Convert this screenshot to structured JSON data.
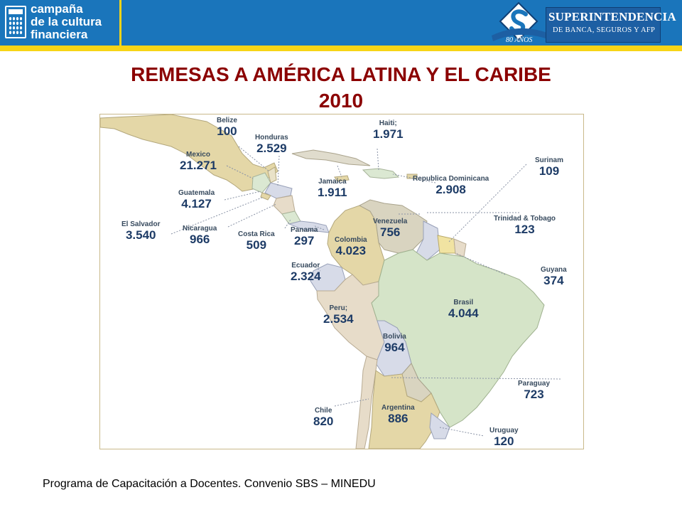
{
  "header": {
    "brand_lines": [
      "campaña",
      "de la cultura",
      "financiera"
    ],
    "org_name_line1": "SUPERINTENDENCIA",
    "org_name_line2": "DE BANCA, SEGUROS Y AFP",
    "anniversary": "80 AÑOS",
    "bar_color": "#1a75bb",
    "stripe_color": "#f7d417"
  },
  "title": {
    "line1": "REMESAS A AMÉRICA LATINA Y EL CARIBE",
    "line2": "2010",
    "color": "#8b0000"
  },
  "map": {
    "countries": [
      {
        "name": "Belize",
        "value": "100"
      },
      {
        "name": "Honduras",
        "value": "2.529"
      },
      {
        "name": "Haiti;",
        "value": "1.971"
      },
      {
        "name": "Mexico",
        "value": "21.271"
      },
      {
        "name": "Surinam",
        "value": "109"
      },
      {
        "name": "Jamaica",
        "value": "1.911"
      },
      {
        "name": "Republica Dominicana",
        "value": "2.908"
      },
      {
        "name": "Guatemala",
        "value": "4.127"
      },
      {
        "name": "El Salvador",
        "value": "3.540"
      },
      {
        "name": "Nicaragua",
        "value": "966"
      },
      {
        "name": "Costa Rica",
        "value": "509"
      },
      {
        "name": "Panama",
        "value": "297"
      },
      {
        "name": "Venezuela",
        "value": "756"
      },
      {
        "name": "Trinidad & Tobago",
        "value": "123"
      },
      {
        "name": "Colombia",
        "value": "4.023"
      },
      {
        "name": "Ecuador",
        "value": "2.324"
      },
      {
        "name": "Guyana",
        "value": "374"
      },
      {
        "name": "Brasil",
        "value": "4.044"
      },
      {
        "name": "Peru;",
        "value": "2.534"
      },
      {
        "name": "Bolivia",
        "value": "964"
      },
      {
        "name": "Paraguay",
        "value": "723"
      },
      {
        "name": "Chile",
        "value": "820"
      },
      {
        "name": "Argentina",
        "value": "886"
      },
      {
        "name": "Uruguay",
        "value": "120"
      }
    ]
  },
  "footer": {
    "text": "Programa de Capacitación a Docentes. Convenio SBS – MINEDU"
  }
}
